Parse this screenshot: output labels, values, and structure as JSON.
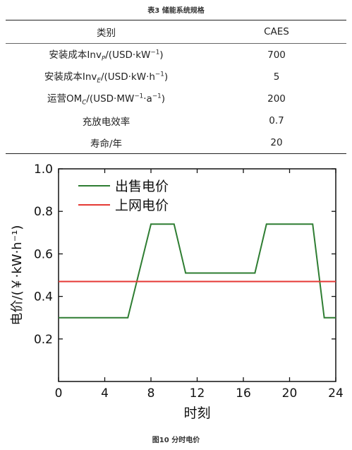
{
  "table": {
    "caption": "表3   储能系统规格",
    "header": {
      "label": "类别",
      "value": "CAES"
    },
    "rows": [
      {
        "label_html": "安装成本Inv<sub><i>P</i></sub>/(USD·kW<sup>−1</sup>)",
        "value": "700"
      },
      {
        "label_html": "安装成本Inv<sub><i>E</i></sub>/(USD·kW·h<sup>−1</sup>)",
        "value": "5"
      },
      {
        "label_html": "运营OM<sub><i>C</i></sub>/(USD·MW<sup>−1</sup>·a<sup>−1</sup>)",
        "value": "200"
      },
      {
        "label_html": "充放电效率",
        "value": "0.7"
      },
      {
        "label_html": "寿命/年",
        "value": "20"
      }
    ]
  },
  "figure": {
    "caption": "图10    分时电价"
  },
  "chart_data": {
    "type": "line",
    "xlabel": "时刻",
    "ylabel": "电价/(￥·kW·h⁻¹)",
    "xlim": [
      0,
      24
    ],
    "ylim": [
      0,
      1.0
    ],
    "xticks": [
      0,
      4,
      8,
      12,
      16,
      20,
      24
    ],
    "yticks": [
      0.2,
      0.4,
      0.6,
      0.8,
      1.0
    ],
    "ytick_labels": [
      "0.2",
      "0.4",
      "0.6",
      "0.8",
      "1.0"
    ],
    "legend_position": "top-left",
    "series": [
      {
        "name": "出售电价",
        "color": "#2e7d32",
        "x": [
          0,
          6,
          8,
          10,
          11,
          17,
          18,
          22,
          23,
          24
        ],
        "y": [
          0.3,
          0.3,
          0.74,
          0.74,
          0.51,
          0.51,
          0.74,
          0.74,
          0.3,
          0.3
        ]
      },
      {
        "name": "上网电价",
        "color": "#e53935",
        "x": [
          0,
          24
        ],
        "y": [
          0.47,
          0.47
        ]
      }
    ]
  }
}
